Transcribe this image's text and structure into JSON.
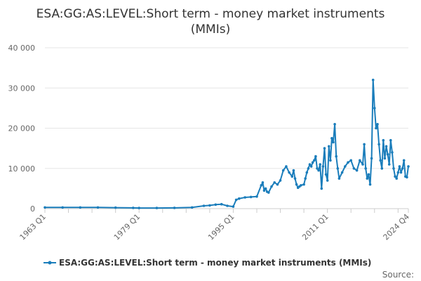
{
  "chart_data": {
    "type": "line",
    "title_lines": [
      "ESA:GG:AS:LEVEL:Short term - money market instruments",
      "(MMIs)"
    ],
    "xlabel": "",
    "ylabel": "",
    "x_domain": [
      1963.0,
      2024.75
    ],
    "ylim": [
      0,
      40000
    ],
    "y_ticks": [
      0,
      10000,
      20000,
      30000,
      40000
    ],
    "y_tick_labels": [
      "0",
      "10 000",
      "20 000",
      "30 000",
      "40 000"
    ],
    "x_ticks": [
      1963.0,
      1979.0,
      1995.0,
      2011.0,
      2024.75
    ],
    "x_tick_labels": [
      "1963 Q1",
      "1979 Q1",
      "1995 Q1",
      "2011 Q1",
      "2024 Q4"
    ],
    "grid": "horizontal",
    "legend_position": "bottom-center",
    "series": [
      {
        "name": "ESA:GG:AS:LEVEL:Short term - money market instruments (MMIs)",
        "color": "#1a7dbb",
        "x": [
          1963.0,
          1966.0,
          1969.0,
          1972.0,
          1975.0,
          1978.0,
          1979.0,
          1982.0,
          1985.0,
          1988.0,
          1990.0,
          1991.0,
          1992.0,
          1993.0,
          1994.0,
          1995.0,
          1995.5,
          1996.0,
          1997.0,
          1998.0,
          1999.0,
          1999.75,
          2000.0,
          2000.25,
          2000.5,
          2000.75,
          2001.0,
          2001.5,
          2002.0,
          2002.5,
          2003.0,
          2003.5,
          2004.0,
          2004.5,
          2005.0,
          2005.25,
          2005.5,
          2005.75,
          2006.0,
          2006.25,
          2006.5,
          2007.0,
          2007.25,
          2007.5,
          2007.75,
          2008.0,
          2008.25,
          2008.5,
          2008.75,
          2009.0,
          2009.25,
          2009.5,
          2009.75,
          2010.0,
          2010.25,
          2010.5,
          2010.75,
          2011.0,
          2011.25,
          2011.5,
          2011.75,
          2012.0,
          2012.25,
          2012.5,
          2012.75,
          2013.0,
          2013.5,
          2014.0,
          2014.5,
          2015.0,
          2015.5,
          2016.0,
          2016.5,
          2017.0,
          2017.25,
          2017.5,
          2017.75,
          2018.0,
          2018.25,
          2018.5,
          2018.75,
          2019.0,
          2019.25,
          2019.5,
          2019.75,
          2020.0,
          2020.25,
          2020.5,
          2020.75,
          2021.0,
          2021.25,
          2021.5,
          2021.75,
          2022.0,
          2022.25,
          2022.5,
          2022.75,
          2023.0,
          2023.25,
          2023.5,
          2023.75,
          2024.0,
          2024.25,
          2024.5,
          2024.75
        ],
        "values": [
          300,
          300,
          300,
          300,
          250,
          200,
          150,
          150,
          200,
          300,
          700,
          800,
          1000,
          1100,
          700,
          500,
          2200,
          2500,
          2800,
          2900,
          3000,
          5800,
          6500,
          4500,
          5000,
          4200,
          4000,
          5500,
          6500,
          6000,
          7000,
          9500,
          10500,
          9000,
          8000,
          9500,
          7500,
          6000,
          5200,
          5500,
          5800,
          6000,
          7500,
          9000,
          10000,
          11000,
          10500,
          11500,
          12000,
          13000,
          10000,
          9500,
          11000,
          5000,
          10500,
          15000,
          8500,
          7000,
          15500,
          12000,
          17500,
          16500,
          21000,
          13000,
          10000,
          7500,
          9000,
          10500,
          11500,
          12000,
          10000,
          9500,
          12000,
          11000,
          16000,
          10000,
          7500,
          8500,
          6000,
          12500,
          32000,
          25000,
          20000,
          21000,
          16000,
          12000,
          10000,
          17000,
          12500,
          15500,
          13500,
          11000,
          17000,
          14000,
          10000,
          8000,
          7500,
          9000,
          10500,
          9000,
          10000,
          12000,
          8000,
          7800,
          10500
        ]
      }
    ]
  },
  "credit": "Source:"
}
